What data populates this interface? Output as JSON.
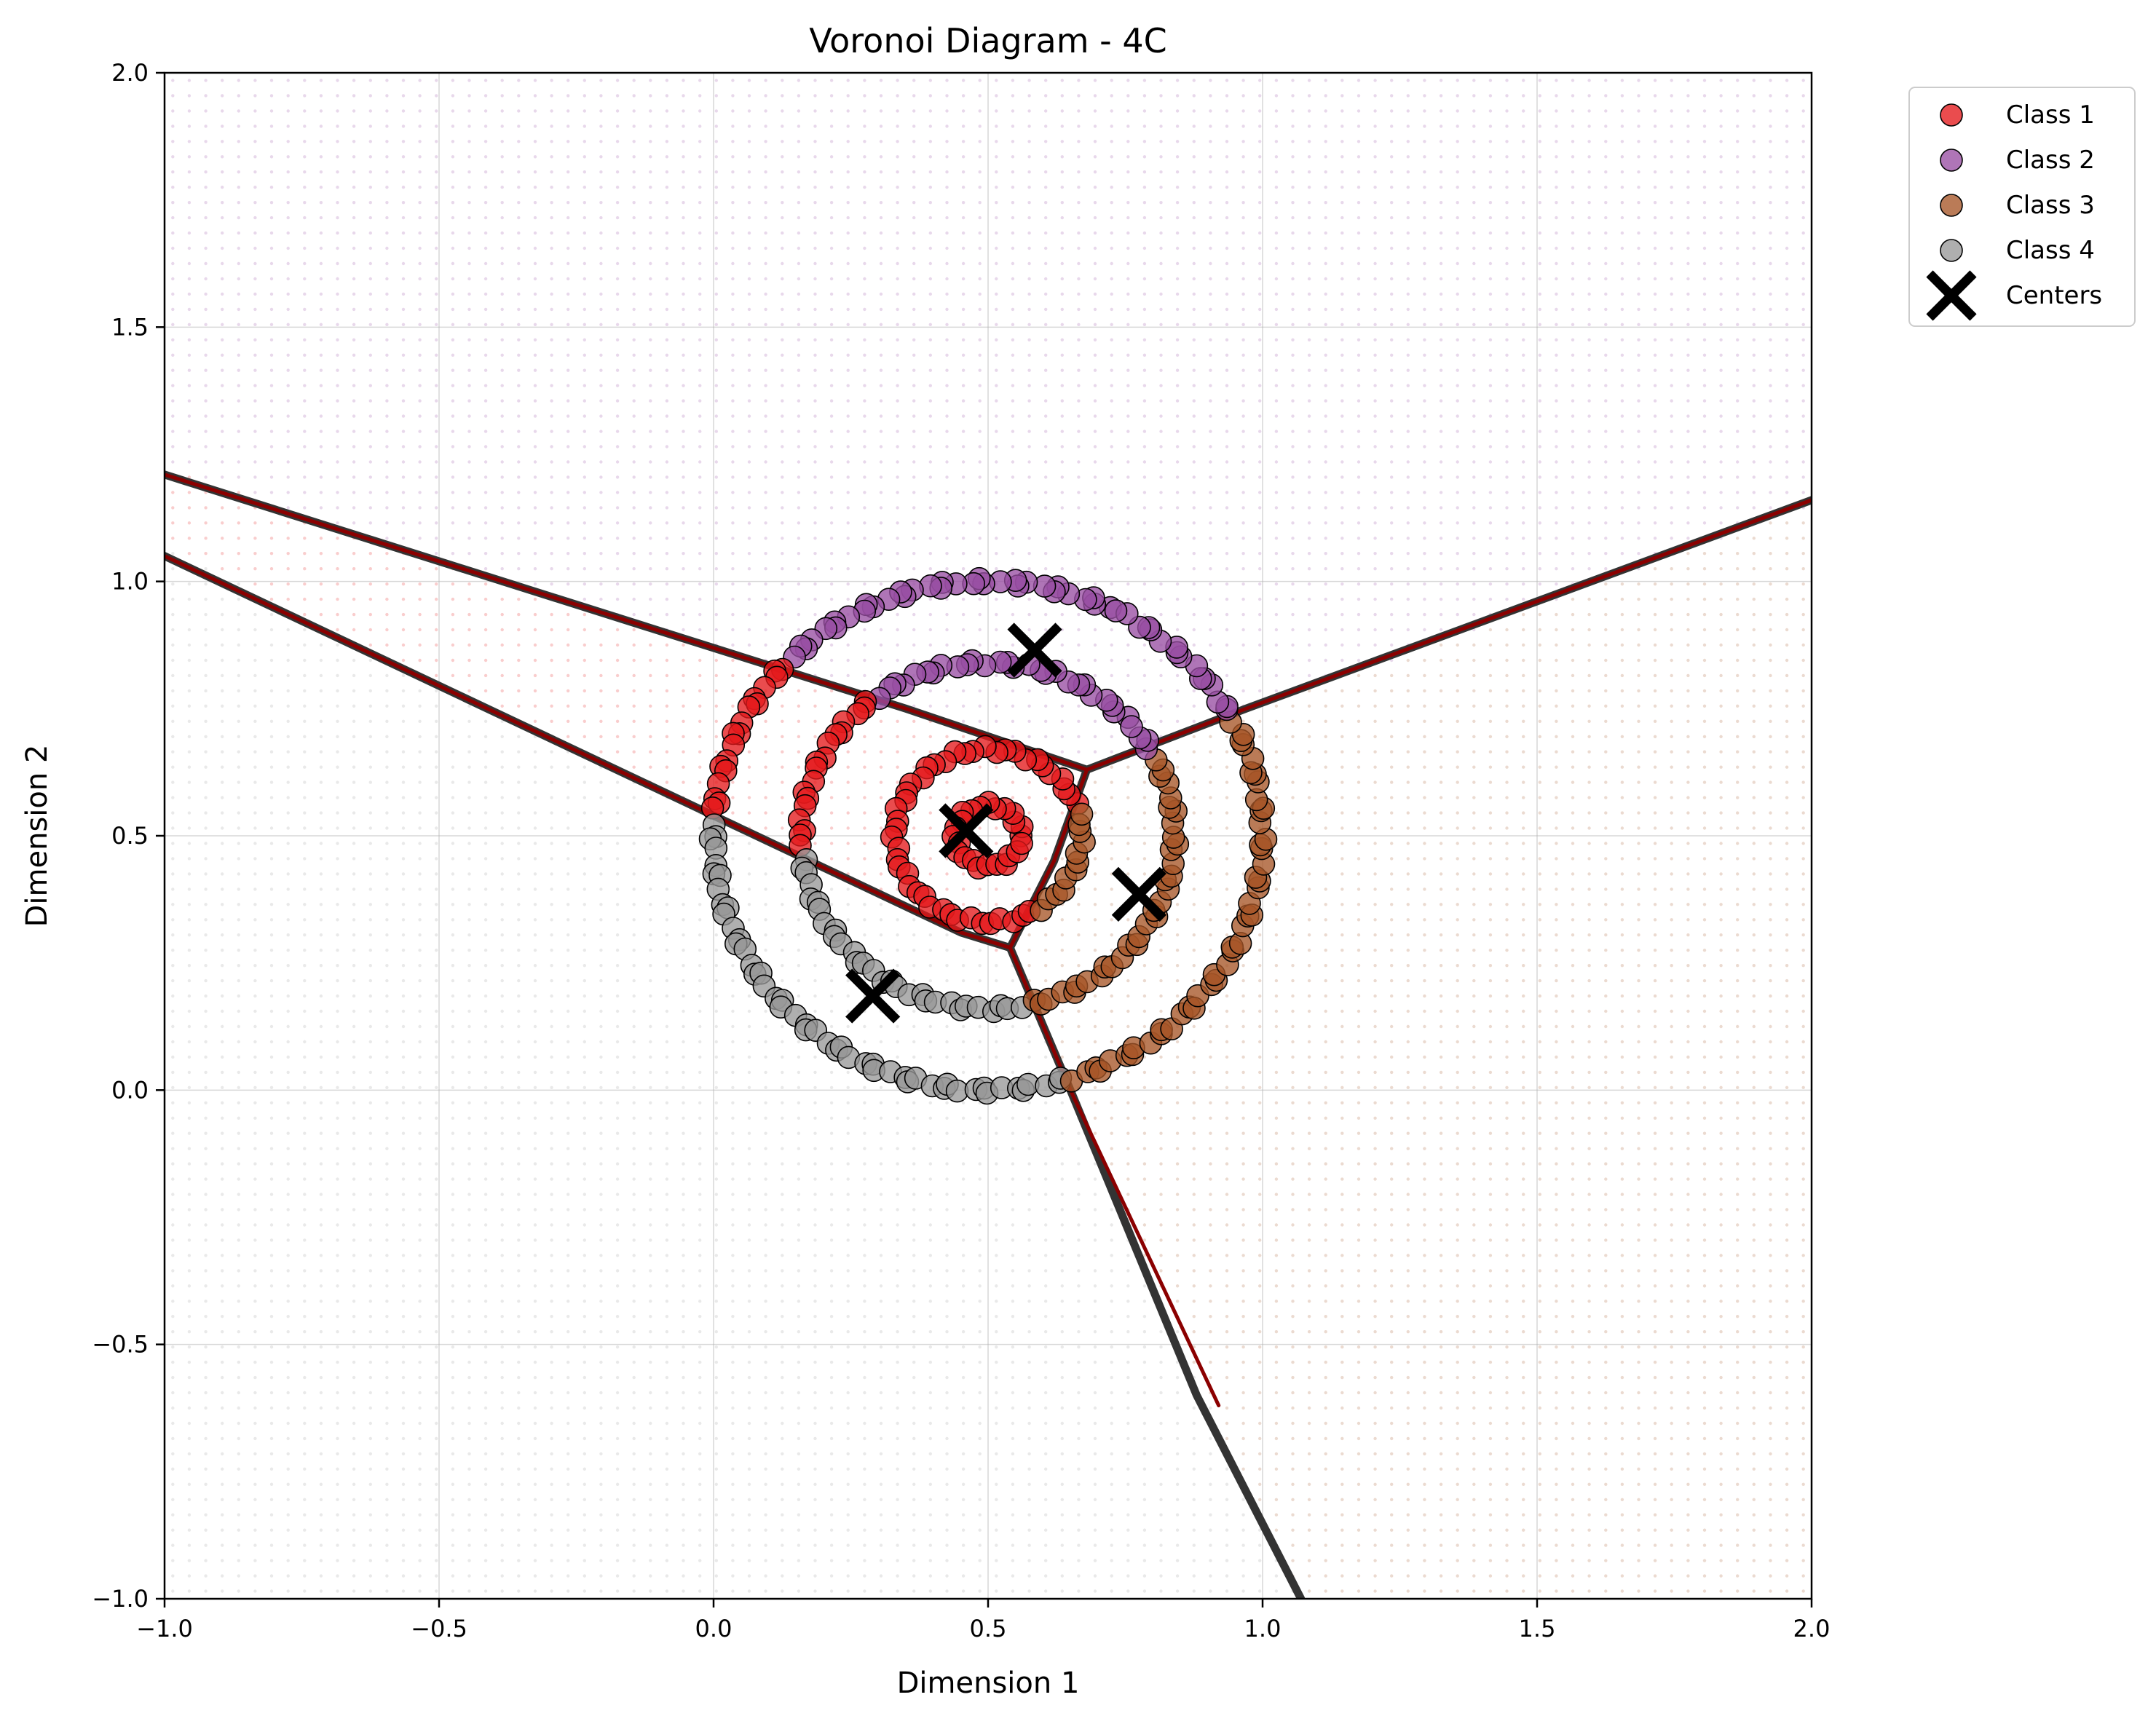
{
  "chart_data": {
    "type": "scatter",
    "title": "Voronoi Diagram - 4C",
    "xlabel": "Dimension 1",
    "ylabel": "Dimension 2",
    "xlim": [
      -1.0,
      2.0
    ],
    "ylim": [
      -1.0,
      2.0
    ],
    "x_ticks": [
      -1.0,
      -0.5,
      0.0,
      0.5,
      1.0,
      1.5,
      2.0
    ],
    "y_ticks": [
      -1.0,
      -0.5,
      0.0,
      0.5,
      1.0,
      1.5,
      2.0
    ],
    "x_tick_labels": [
      "−1.0",
      "−0.5",
      "0.0",
      "0.5",
      "1.0",
      "1.5",
      "2.0"
    ],
    "y_tick_labels": [
      "−1.0",
      "−0.5",
      "0.0",
      "0.5",
      "1.0",
      "1.5",
      "2.0"
    ],
    "grid": true,
    "legend_position": "outside-top-right",
    "rings": {
      "center": [
        0.5,
        0.5
      ],
      "radii": [
        0.06,
        0.17,
        0.34,
        0.5
      ]
    },
    "series": [
      {
        "name": "Class 1",
        "color": "#e41a1c",
        "marker": "circle"
      },
      {
        "name": "Class 2",
        "color": "#984ea3",
        "marker": "circle"
      },
      {
        "name": "Class 3",
        "color": "#a65628",
        "marker": "circle"
      },
      {
        "name": "Class 4",
        "color": "#999999",
        "marker": "circle"
      }
    ],
    "centers": {
      "name": "Centers",
      "color": "#000000",
      "marker": "x",
      "points": [
        [
          0.46,
          0.51
        ],
        [
          0.585,
          0.865
        ],
        [
          0.775,
          0.385
        ],
        [
          0.29,
          0.185
        ]
      ]
    },
    "boundaries": [
      {
        "color": "#333333",
        "points": [
          [
            -1.0,
            1.05
          ],
          [
            0.45,
            0.31
          ],
          [
            0.54,
            0.28
          ]
        ]
      },
      {
        "color": "#333333",
        "points": [
          [
            -1.0,
            1.21
          ],
          [
            0.35,
            0.75
          ],
          [
            0.68,
            0.63
          ],
          [
            0.97,
            0.75
          ],
          [
            2.0,
            1.16
          ]
        ]
      },
      {
        "color": "#333333",
        "points": [
          [
            0.68,
            0.63
          ],
          [
            0.62,
            0.45
          ],
          [
            0.54,
            0.28
          ],
          [
            0.65,
            0.0
          ],
          [
            0.88,
            -0.6
          ],
          [
            1.07,
            -1.0
          ]
        ]
      },
      {
        "color": "#8b0000",
        "points": [
          [
            -1.0,
            1.05
          ],
          [
            0.45,
            0.31
          ],
          [
            0.54,
            0.28
          ]
        ]
      },
      {
        "color": "#8b0000",
        "points": [
          [
            -1.0,
            1.21
          ],
          [
            0.35,
            0.75
          ],
          [
            0.68,
            0.63
          ],
          [
            0.97,
            0.75
          ],
          [
            2.0,
            1.16
          ]
        ]
      },
      {
        "color": "#8b0000",
        "points": [
          [
            0.68,
            0.63
          ],
          [
            0.62,
            0.45
          ],
          [
            0.54,
            0.28
          ],
          [
            0.65,
            0.0
          ],
          [
            0.92,
            -0.62
          ]
        ]
      }
    ]
  }
}
